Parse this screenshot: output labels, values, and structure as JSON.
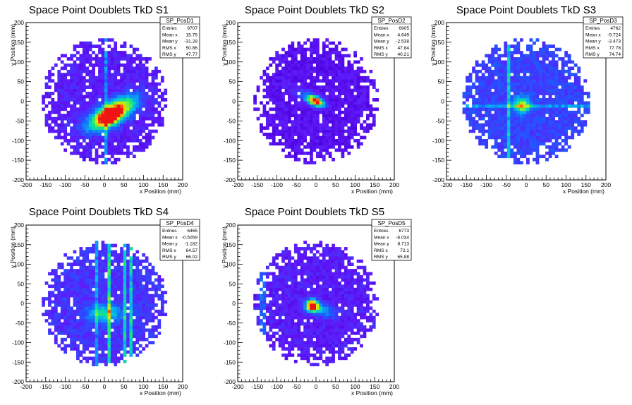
{
  "chart_data": [
    {
      "type": "heatmap",
      "title": "Space Point Doublets TkD S1",
      "xlabel": "x Position (mm)",
      "ylabel": "y Position (mm)",
      "xlim": [
        -200,
        200
      ],
      "ylim": [
        -200,
        200
      ],
      "xticks": [
        -200,
        -150,
        -100,
        -50,
        0,
        50,
        100,
        150,
        200
      ],
      "yticks": [
        -200,
        -150,
        -100,
        -50,
        0,
        50,
        100,
        150,
        200
      ],
      "stats": {
        "name": "SP_PosD1",
        "rows": [
          {
            "label": "Entries",
            "value": "9707"
          },
          {
            "label": "Mean x",
            "value": "15.75"
          },
          {
            "label": "Mean y",
            "value": "-31.28"
          },
          {
            "label": "RMS x",
            "value": "50.86"
          },
          {
            "label": "RMS y",
            "value": "47.77"
          }
        ]
      },
      "hotspots": [
        {
          "x": 20,
          "y": -30,
          "sx": 45,
          "sy": 18,
          "rot": 30,
          "amp": 1.0
        },
        {
          "x": 15,
          "y": -40,
          "sx": 20,
          "sy": 12,
          "rot": 30,
          "amp": 0.6
        }
      ],
      "lines": [
        {
          "orient": "v",
          "pos": 5,
          "amp": 0.3
        }
      ],
      "radius": 160,
      "background": 0.12
    },
    {
      "type": "heatmap",
      "title": "Space Point Doublets TkD S2",
      "xlabel": "x Position (mm)",
      "ylabel": "y Position (mm)",
      "xlim": [
        -200,
        200
      ],
      "ylim": [
        -200,
        200
      ],
      "xticks": [
        -200,
        -150,
        -100,
        -50,
        0,
        50,
        100,
        150,
        200
      ],
      "yticks": [
        -200,
        -150,
        -100,
        -50,
        0,
        50,
        100,
        150,
        200
      ],
      "stats": {
        "name": "SP_PosD2",
        "rows": [
          {
            "label": "Entries",
            "value": "6905"
          },
          {
            "label": "Mean x",
            "value": "4.649"
          },
          {
            "label": "Mean y",
            "value": "-2.538"
          },
          {
            "label": "RMS x",
            "value": "47.84"
          },
          {
            "label": "RMS y",
            "value": "40.21"
          }
        ]
      },
      "hotspots": [
        {
          "x": 0,
          "y": 0,
          "sx": 15,
          "sy": 8,
          "rot": -25,
          "amp": 1.0
        },
        {
          "x": -30,
          "y": 15,
          "sx": 25,
          "sy": 10,
          "rot": -25,
          "amp": 0.2
        }
      ],
      "lines": [],
      "radius": 160,
      "background": 0.08
    },
    {
      "type": "heatmap",
      "title": "Space Point Doublets TkD S3",
      "xlabel": "x Position (mm)",
      "ylabel": "y Position (mm)",
      "xlim": [
        -200,
        200
      ],
      "ylim": [
        -200,
        200
      ],
      "xticks": [
        -200,
        -150,
        -100,
        -50,
        0,
        50,
        100,
        150,
        200
      ],
      "yticks": [
        -200,
        -150,
        -100,
        -50,
        0,
        50,
        100,
        150,
        200
      ],
      "stats": {
        "name": "SP_PosD3",
        "rows": [
          {
            "label": "Entries",
            "value": "4762"
          },
          {
            "label": "Mean x",
            "value": "-9.724"
          },
          {
            "label": "Mean y",
            "value": "-3.473"
          },
          {
            "label": "RMS x",
            "value": "77.78"
          },
          {
            "label": "RMS y",
            "value": "74.74"
          }
        ]
      },
      "hotspots": [
        {
          "x": -10,
          "y": -10,
          "sx": 14,
          "sy": 14,
          "rot": 0,
          "amp": 0.55
        }
      ],
      "lines": [
        {
          "orient": "v",
          "pos": -45,
          "amp": 0.3
        },
        {
          "orient": "h",
          "pos": -10,
          "amp": 0.2
        }
      ],
      "radius": 160,
      "background": 0.22
    },
    {
      "type": "heatmap",
      "title": "Space Point Doublets TkD S4",
      "xlabel": "x Position (mm)",
      "ylabel": "y Position (mm)",
      "xlim": [
        -200,
        200
      ],
      "ylim": [
        -200,
        200
      ],
      "xticks": [
        -200,
        -150,
        -100,
        -50,
        0,
        50,
        100,
        150,
        200
      ],
      "yticks": [
        -200,
        -150,
        -100,
        -50,
        0,
        50,
        100,
        150,
        200
      ],
      "stats": {
        "name": "SP_PosD4",
        "rows": [
          {
            "label": "Entries",
            "value": "6465"
          },
          {
            "label": "Mean x",
            "value": "-0.5059"
          },
          {
            "label": "Mean y",
            "value": "-1.182"
          },
          {
            "label": "RMS x",
            "value": "64.57"
          },
          {
            "label": "RMS y",
            "value": "66.02"
          }
        ]
      },
      "hotspots": [
        {
          "x": 0,
          "y": -25,
          "sx": 30,
          "sy": 15,
          "rot": 0,
          "amp": 0.4
        }
      ],
      "lines": [
        {
          "orient": "v",
          "pos": 10,
          "amp": 0.45
        },
        {
          "orient": "v",
          "pos": 50,
          "amp": 0.4
        },
        {
          "orient": "v",
          "pos": 70,
          "amp": 0.4
        },
        {
          "orient": "v",
          "pos": -20,
          "amp": 0.25
        }
      ],
      "radius": 160,
      "background": 0.18
    },
    {
      "type": "heatmap",
      "title": "Space Point Doublets TkD S5",
      "xlabel": "x Position (mm)",
      "ylabel": "y Position (mm)",
      "xlim": [
        -200,
        200
      ],
      "ylim": [
        -200,
        200
      ],
      "xticks": [
        -200,
        -150,
        -100,
        -50,
        0,
        50,
        100,
        150,
        200
      ],
      "yticks": [
        -200,
        -150,
        -100,
        -50,
        0,
        50,
        100,
        150,
        200
      ],
      "stats": {
        "name": "SP_PosD5",
        "rows": [
          {
            "label": "Entries",
            "value": "6773"
          },
          {
            "label": "Mean x",
            "value": "-6.034"
          },
          {
            "label": "Mean y",
            "value": "8.713"
          },
          {
            "label": "RMS x",
            "value": "72.1"
          },
          {
            "label": "RMS y",
            "value": "65.88"
          }
        ]
      },
      "hotspots": [
        {
          "x": -10,
          "y": -5,
          "sx": 10,
          "sy": 10,
          "rot": 0,
          "amp": 1.0
        },
        {
          "x": 10,
          "y": -15,
          "sx": 25,
          "sy": 10,
          "rot": -20,
          "amp": 0.35
        }
      ],
      "lines": [
        {
          "orient": "v",
          "pos": -135,
          "amp": 0.2
        }
      ],
      "radius": 160,
      "background": 0.12
    }
  ]
}
